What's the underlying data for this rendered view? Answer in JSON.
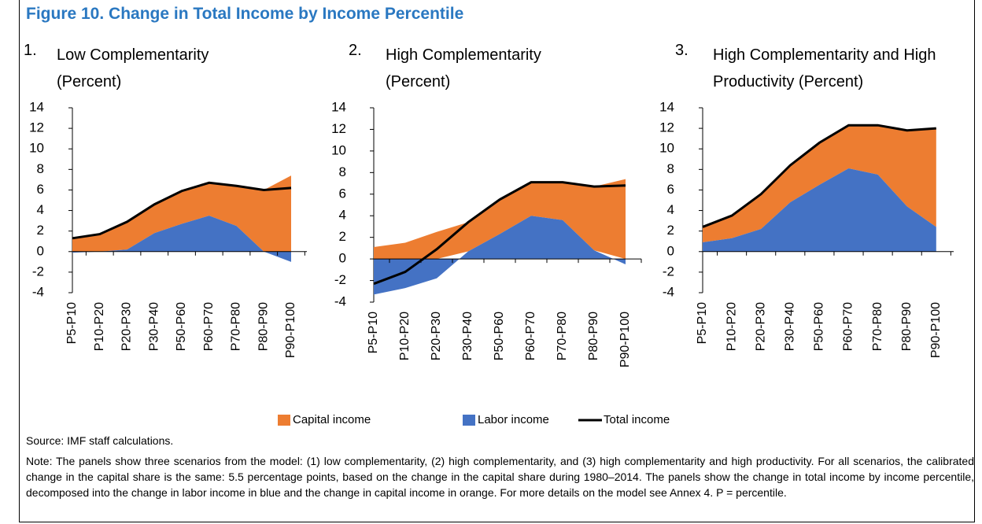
{
  "figure_title": "Figure 10. Change in Total Income by Income Percentile",
  "legend": [
    {
      "name": "Capital income",
      "color": "#ed7d31",
      "kind": "area"
    },
    {
      "name": "Labor income",
      "color": "#4472c4",
      "kind": "area"
    },
    {
      "name": "Total income",
      "color": "#000000",
      "kind": "line"
    }
  ],
  "chart_data": [
    {
      "type": "area",
      "stacked": true,
      "number": "1.",
      "title": "Low Complementarity (Percent)",
      "categories": [
        "P5-P10",
        "P10-P20",
        "P20-P30",
        "P30-P40",
        "P50-P60",
        "P60-P70",
        "P70-P80",
        "P80-P90",
        "P90-P100"
      ],
      "series": [
        {
          "kind": "area",
          "color": "#ed7d31",
          "values": [
            1.4,
            1.7,
            2.7,
            2.8,
            3.2,
            3.2,
            3.9,
            6.0,
            7.4
          ]
        },
        {
          "kind": "area",
          "color": "#4472c4",
          "values": [
            -0.1,
            0.0,
            0.2,
            1.8,
            2.7,
            3.5,
            2.5,
            0.0,
            -1.0
          ]
        },
        {
          "kind": "line",
          "color": "#000000",
          "values": [
            1.3,
            1.7,
            2.9,
            4.6,
            5.9,
            6.7,
            6.4,
            6.0,
            6.2
          ]
        }
      ],
      "ylim": [
        -4,
        14
      ],
      "yticks": [
        -4,
        -2,
        0,
        2,
        4,
        6,
        8,
        10,
        12,
        14
      ]
    },
    {
      "type": "area",
      "stacked": true,
      "number": "2.",
      "title": "High Complementarity (Percent)",
      "categories": [
        "P5-P10",
        "P10-P20",
        "P20-P30",
        "P30-P40",
        "P50-P60",
        "P60-P70",
        "P70-P80",
        "P80-P90",
        "P90-P100"
      ],
      "series": [
        {
          "kind": "area",
          "color": "#ed7d31",
          "values": [
            1.1,
            1.5,
            2.5,
            2.7,
            3.2,
            3.1,
            3.5,
            5.9,
            7.4
          ]
        },
        {
          "kind": "area",
          "color": "#4472c4",
          "values": [
            -3.3,
            -2.7,
            -1.8,
            0.7,
            2.3,
            4.0,
            3.6,
            0.8,
            -0.5
          ]
        },
        {
          "kind": "line",
          "color": "#000000",
          "values": [
            -2.3,
            -1.2,
            0.9,
            3.4,
            5.5,
            7.1,
            7.1,
            6.7,
            6.8
          ]
        }
      ],
      "ylim": [
        -4,
        14
      ],
      "yticks": [
        -4,
        -2,
        0,
        2,
        4,
        6,
        8,
        10,
        12,
        14
      ]
    },
    {
      "type": "area",
      "stacked": true,
      "number": "3.",
      "title": "High Complementarity and High Productivity (Percent)",
      "categories": [
        "P5-P10",
        "P10-P20",
        "P20-P30",
        "P30-P40",
        "P50-P60",
        "P60-P70",
        "P70-P80",
        "P80-P90",
        "P90-P100"
      ],
      "series": [
        {
          "kind": "area",
          "color": "#ed7d31",
          "values": [
            1.5,
            2.2,
            3.4,
            3.6,
            4.1,
            4.2,
            4.8,
            7.4,
            9.6
          ]
        },
        {
          "kind": "area",
          "color": "#4472c4",
          "values": [
            0.9,
            1.3,
            2.2,
            4.8,
            6.5,
            8.1,
            7.5,
            4.4,
            2.4
          ]
        },
        {
          "kind": "line",
          "color": "#000000",
          "values": [
            2.4,
            3.5,
            5.6,
            8.4,
            10.6,
            12.3,
            12.3,
            11.8,
            12.0
          ]
        }
      ],
      "ylim": [
        -4,
        14
      ],
      "yticks": [
        -4,
        -2,
        0,
        2,
        4,
        6,
        8,
        10,
        12,
        14
      ]
    }
  ],
  "source": "Source: IMF staff calculations.",
  "note": "Note: The panels show three scenarios from the model: (1) low complementarity, (2) high complementarity, and (3) high complementarity and high productivity. For all scenarios, the calibrated change in the capital share is the same: 5.5 percentage points, based on the change in the capital share during 1980–2014. The panels show the change in total income by income percentile, decomposed into the change in labor income in blue and the change in capital income in orange. For more details on the model see Annex 4. P = percentile."
}
